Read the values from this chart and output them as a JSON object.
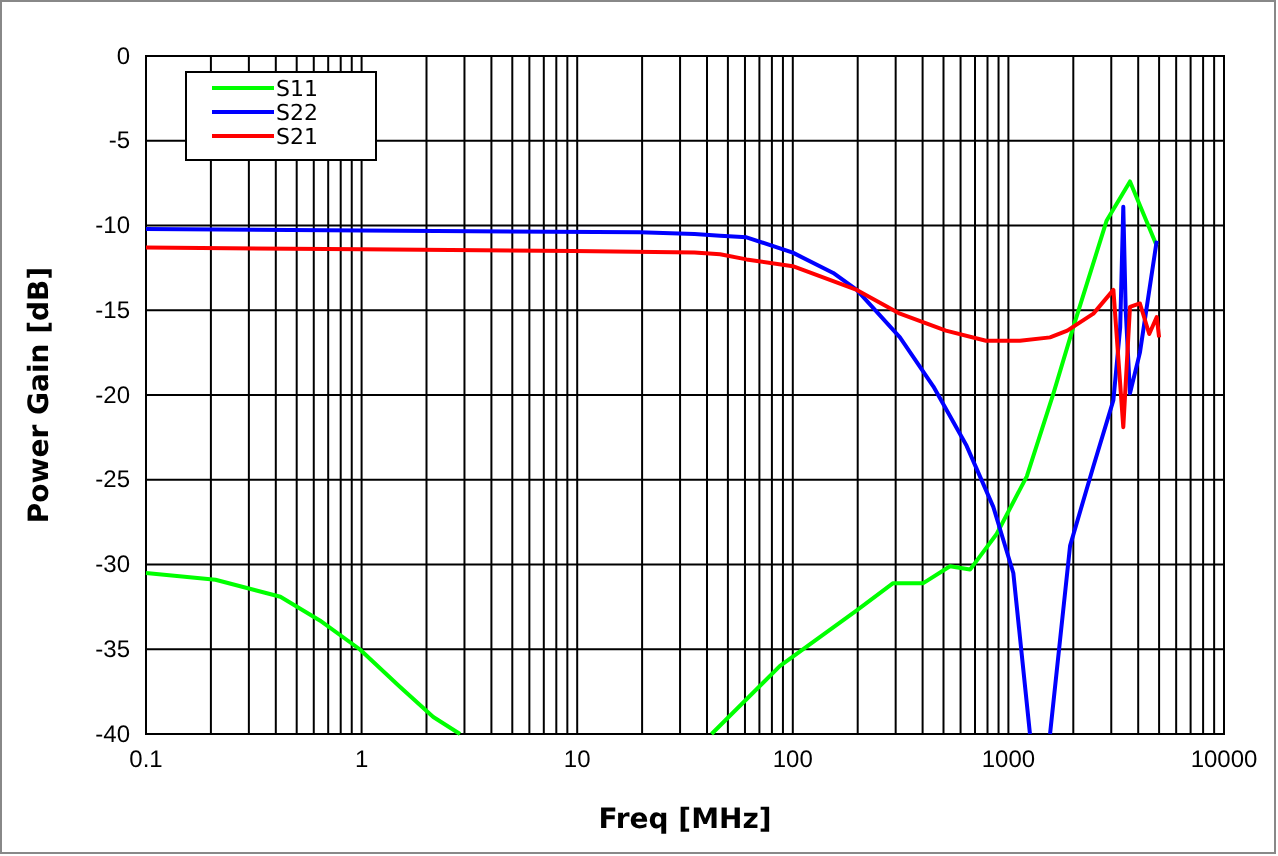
{
  "chart_data": {
    "type": "line",
    "xlabel": "Freq [MHz]",
    "ylabel": "Power Gain [dB]",
    "log": "x",
    "grid": true,
    "legend": "top left",
    "line_style": "solid",
    "marker": "none",
    "xlim": [
      0.1,
      10000
    ],
    "ylim": [
      -40,
      0
    ],
    "xticks": [
      0.1,
      {
        "value": 0.2,
        "label": null
      },
      {
        "value": 0.3,
        "label": null
      },
      {
        "value": 0.4,
        "label": null
      },
      {
        "value": 0.5,
        "label": null
      },
      {
        "value": 0.6,
        "label": null
      },
      {
        "value": 0.7,
        "label": null
      },
      {
        "value": 0.8,
        "label": null
      },
      {
        "value": 0.9,
        "label": null
      },
      1,
      {
        "value": 2,
        "label": null
      },
      {
        "value": 3,
        "label": null
      },
      {
        "value": 4,
        "label": null
      },
      {
        "value": 5,
        "label": null
      },
      {
        "value": 6,
        "label": null
      },
      {
        "value": 7,
        "label": null
      },
      {
        "value": 8,
        "label": null
      },
      {
        "value": 9,
        "label": null
      },
      10,
      {
        "value": 20,
        "label": null
      },
      {
        "value": 30,
        "label": null
      },
      {
        "value": 40,
        "label": null
      },
      {
        "value": 50,
        "label": null
      },
      {
        "value": 60,
        "label": null
      },
      {
        "value": 70,
        "label": null
      },
      {
        "value": 80,
        "label": null
      },
      {
        "value": 90,
        "label": null
      },
      100,
      {
        "value": 200,
        "label": null
      },
      {
        "value": 300,
        "label": null
      },
      {
        "value": 400,
        "label": null
      },
      {
        "value": 500,
        "label": null
      },
      {
        "value": 600,
        "label": null
      },
      {
        "value": 700,
        "label": null
      },
      {
        "value": 800,
        "label": null
      },
      {
        "value": 900,
        "label": null
      },
      1000,
      {
        "value": 2000,
        "label": null
      },
      {
        "value": 3000,
        "label": null
      },
      {
        "value": 4000,
        "label": null
      },
      {
        "value": 5000,
        "label": null
      },
      {
        "value": 6000,
        "label": null
      },
      {
        "value": 7000,
        "label": null
      },
      {
        "value": 8000,
        "label": null
      },
      {
        "value": 9000,
        "label": null
      },
      10000
    ],
    "yticks": [
      -40,
      -35,
      -30,
      -25,
      -20,
      -15,
      -10,
      -5,
      0
    ],
    "series": [
      {
        "name": "S11",
        "color": "#00ff00",
        "x": [
          0.1,
          0.21,
          0.42,
          0.64,
          0.98,
          1.5,
          2.15,
          2.86,
          10,
          42,
          87,
          198,
          292,
          403,
          536,
          664,
          882,
          1217,
          1618,
          2000,
          2857,
          3664,
          4875
        ],
        "values": [
          -30.5,
          -30.9,
          -31.9,
          -33.3,
          -35,
          -37.2,
          -39,
          -40,
          null,
          -40,
          -36,
          -32.7,
          -31.1,
          -31.1,
          -30.1,
          -30.3,
          -28.2,
          -24.8,
          -19.9,
          -16,
          -9.7,
          -7.4,
          -11.2
        ]
      },
      {
        "name": "S22",
        "color": "#0000ff",
        "x": [
          0.1,
          1,
          19.5,
          35,
          46,
          61,
          100,
          154,
          198,
          314,
          449,
          640,
          851,
          1054,
          1259,
          1400,
          1560,
          1932,
          2479,
          3069,
          3300,
          3411,
          3500,
          3664,
          4074,
          4875
        ],
        "values": [
          -10.2,
          -10.3,
          -10.4,
          -10.5,
          -10.6,
          -10.7,
          -11.6,
          -12.8,
          -13.8,
          -16.6,
          -19.5,
          -23,
          -26.6,
          -30.5,
          -40,
          null,
          -40,
          -28.9,
          -24.2,
          -20.3,
          -16,
          -8.9,
          -15,
          -19.9,
          -17.5,
          -10.9
        ]
      },
      {
        "name": "S21",
        "color": "#ff0000",
        "x": [
          0.1,
          1,
          9.6,
          35,
          46,
          61,
          100,
          198,
          314,
          513,
          787,
          1130,
          1560,
          1876,
          2479,
          3069,
          3411,
          3664,
          4074,
          4500,
          4875,
          5000
        ],
        "values": [
          -11.3,
          -11.4,
          -11.5,
          -11.6,
          -11.7,
          -12,
          -12.4,
          -13.8,
          -15.2,
          -16.2,
          -16.8,
          -16.8,
          -16.6,
          -16.2,
          -15.2,
          -13.8,
          -21.9,
          -14.8,
          -14.6,
          -16.4,
          -15.4,
          -16.6
        ]
      }
    ]
  }
}
